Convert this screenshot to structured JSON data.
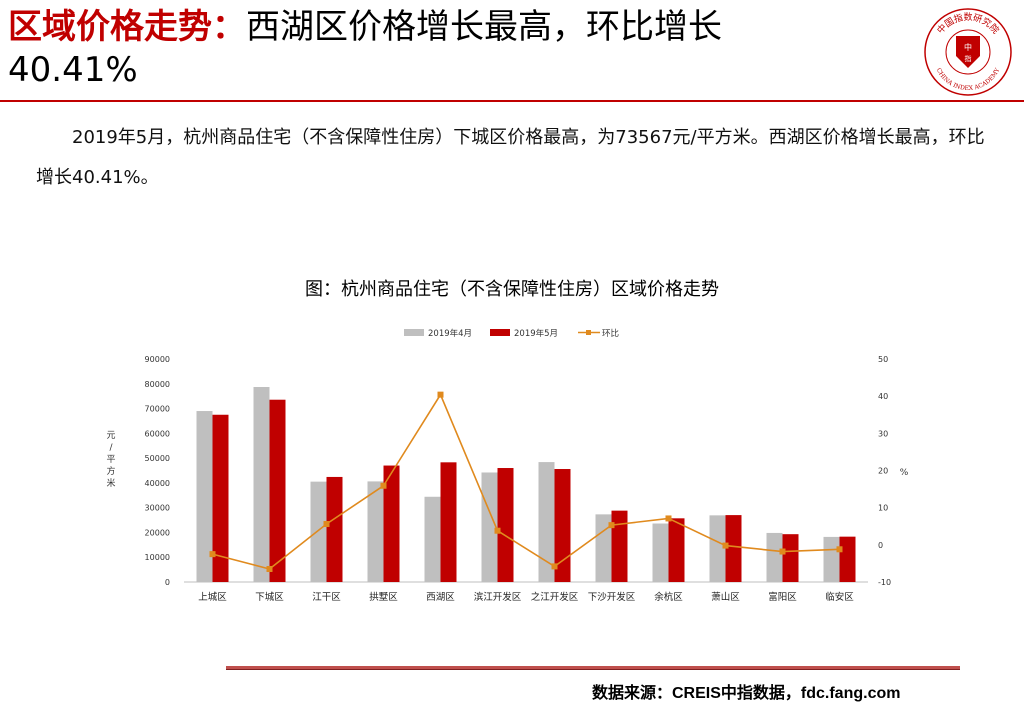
{
  "header": {
    "title_red": "区域价格走势：",
    "title_rest": "西湖区价格增长最高，环比增长",
    "title_line2": "40.41%"
  },
  "logo": {
    "text_top": "中国指数研究院",
    "text_bottom": "CHINA INDEX ACADEMY",
    "text_center": "中指",
    "color": "#c00000"
  },
  "paragraph": "2019年5月，杭州商品住宅（不含保障性住房）下城区价格最高，为73567元/平方米。西湖区价格增长最高，环比增长40.41%。",
  "chart_caption": "图：杭州商品住宅（不含保障性住房）区域价格走势",
  "chart_data": {
    "type": "bar",
    "categories": [
      "上城区",
      "下城区",
      "江干区",
      "拱墅区",
      "西湖区",
      "滨江开发区",
      "之江开发区",
      "下沙开发区",
      "余杭区",
      "萧山区",
      "富阳区",
      "临安区"
    ],
    "series": [
      {
        "name": "2019年4月",
        "type": "bar",
        "axis": "left",
        "color": "#bfbfbf",
        "values": [
          69000,
          78700,
          40500,
          40600,
          34400,
          44200,
          48400,
          27300,
          23600,
          26900,
          19800,
          18200
        ]
      },
      {
        "name": "2019年5月",
        "type": "bar",
        "axis": "left",
        "color": "#c00000",
        "values": [
          67500,
          73567,
          42400,
          47000,
          48300,
          46000,
          45600,
          28800,
          25700,
          27000,
          19300,
          18300
        ]
      },
      {
        "name": "环比",
        "type": "line",
        "axis": "right",
        "color": "#e08a1e",
        "values": [
          -2.5,
          -6.5,
          5.6,
          15.9,
          40.41,
          3.8,
          -5.8,
          5.3,
          7.1,
          -0.2,
          -1.8,
          -1.2
        ]
      }
    ],
    "ylabel_left": "元/平方米",
    "ylabel_right": "%",
    "ylim_left": [
      0,
      90000
    ],
    "yticks_left": [
      "0",
      "10000",
      "20000",
      "30000",
      "40000",
      "50000",
      "60000",
      "70000",
      "80000",
      "90000"
    ],
    "ylim_right": [
      -10,
      50
    ],
    "yticks_right": [
      "-10",
      "0",
      "10",
      "20",
      "30",
      "40",
      "50"
    ],
    "legend_position": "top-center",
    "grid": false
  },
  "footer": {
    "source": "数据来源：CREIS中指数据，fdc.fang.com"
  }
}
